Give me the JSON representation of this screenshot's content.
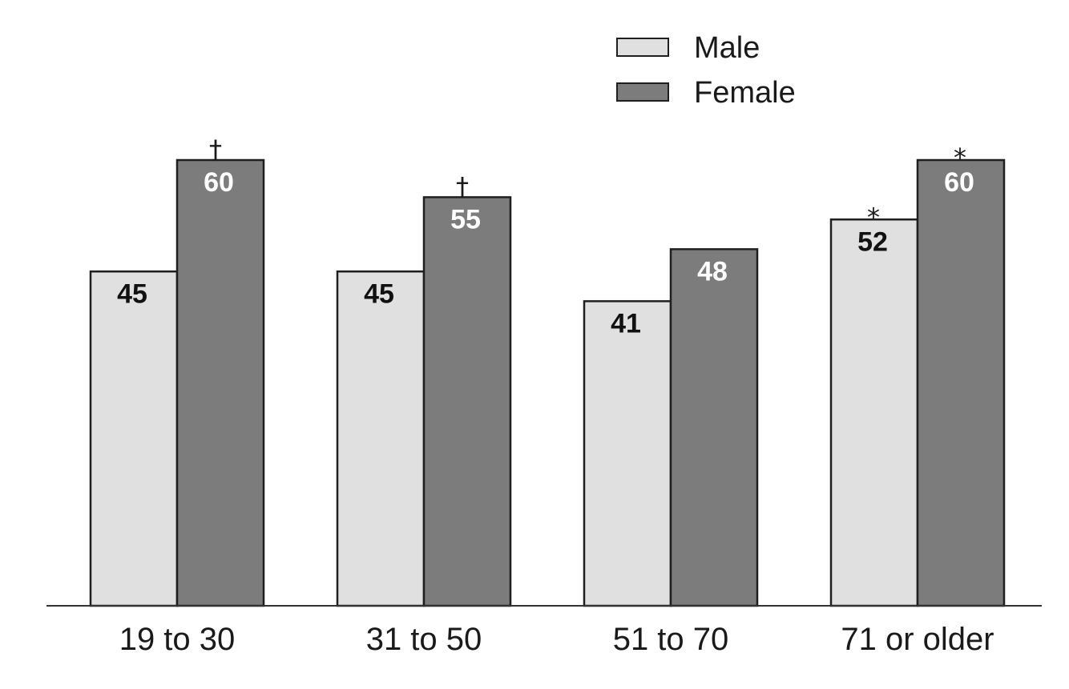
{
  "chart_data": {
    "type": "bar",
    "categories": [
      "19 to 30",
      "31 to 50",
      "51 to 70",
      "71 or older"
    ],
    "series": [
      {
        "name": "Male",
        "values": [
          45,
          45,
          41,
          52
        ],
        "markers": [
          "",
          "",
          "",
          "*"
        ],
        "color": "#e0e0e0",
        "label_color": "#111111"
      },
      {
        "name": "Female",
        "values": [
          60,
          55,
          48,
          60
        ],
        "markers": [
          "†",
          "†",
          "",
          "*"
        ],
        "color": "#7c7c7c",
        "label_color": "#ffffff"
      }
    ],
    "title": "",
    "xlabel": "",
    "ylabel": "",
    "ylim": [
      0,
      60
    ],
    "grid": false,
    "legend_position": "top-right"
  }
}
